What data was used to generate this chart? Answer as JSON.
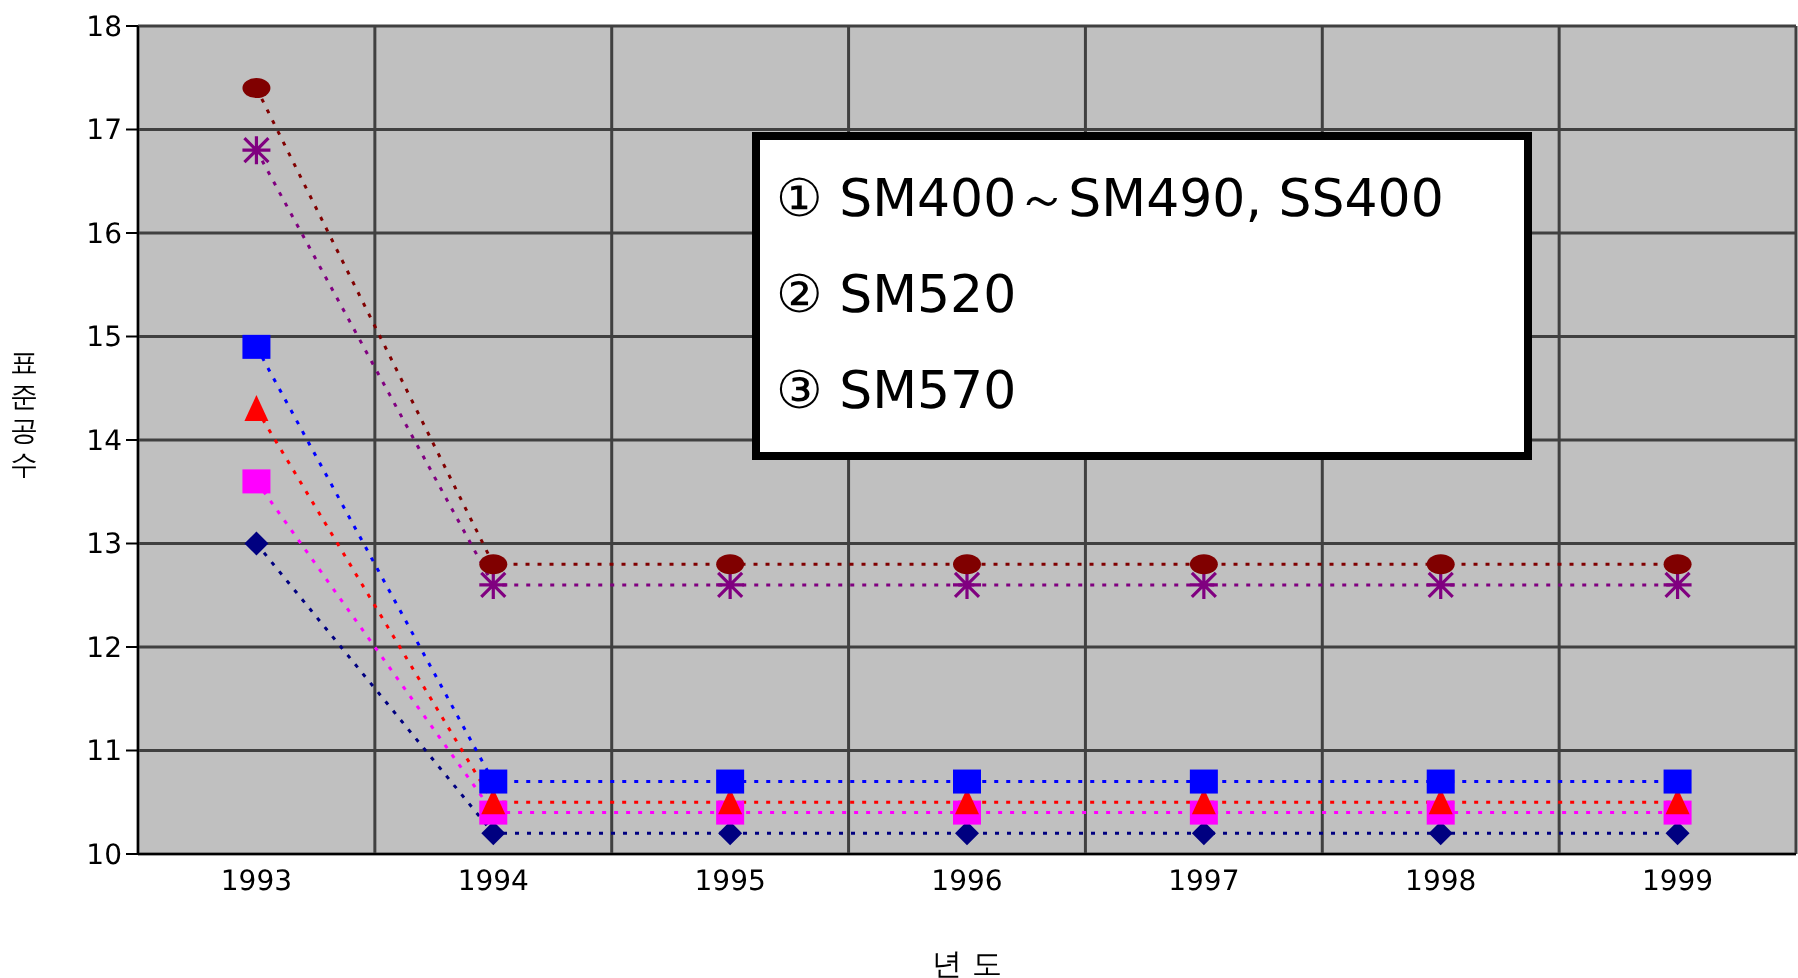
{
  "chart_data": {
    "type": "line",
    "xlabel": "년   도",
    "ylabel": "표준공수",
    "categories": [
      "1993",
      "1994",
      "1995",
      "1996",
      "1997",
      "1998",
      "1999"
    ],
    "series": [
      {
        "color": "#800000",
        "marker": "circle",
        "values": [
          17.4,
          12.8,
          12.8,
          12.8,
          12.8,
          12.8,
          12.8
        ]
      },
      {
        "color": "#800080",
        "marker": "cross",
        "values": [
          16.8,
          12.6,
          12.6,
          12.6,
          12.6,
          12.6,
          12.6
        ]
      },
      {
        "color": "#0000ff",
        "marker": "square",
        "values": [
          14.9,
          10.7,
          10.7,
          10.7,
          10.7,
          10.7,
          10.7
        ]
      },
      {
        "color": "#ff0000",
        "marker": "triangle",
        "values": [
          14.3,
          10.5,
          10.5,
          10.5,
          10.5,
          10.5,
          10.5
        ]
      },
      {
        "color": "#ff00ff",
        "marker": "square",
        "values": [
          13.6,
          10.4,
          10.4,
          10.4,
          10.4,
          10.4,
          10.4
        ]
      },
      {
        "color": "#000080",
        "marker": "diamond",
        "values": [
          13.0,
          10.2,
          10.2,
          10.2,
          10.2,
          10.2,
          10.2
        ]
      }
    ],
    "ylim": [
      10,
      18
    ],
    "yticks": [
      10,
      11,
      12,
      13,
      14,
      15,
      16,
      17,
      18
    ],
    "grid": true,
    "line_style": "dotted",
    "legend": false,
    "annotations": [
      "① SM400～SM490, SS400",
      "② SM520",
      "③ SM570"
    ]
  }
}
